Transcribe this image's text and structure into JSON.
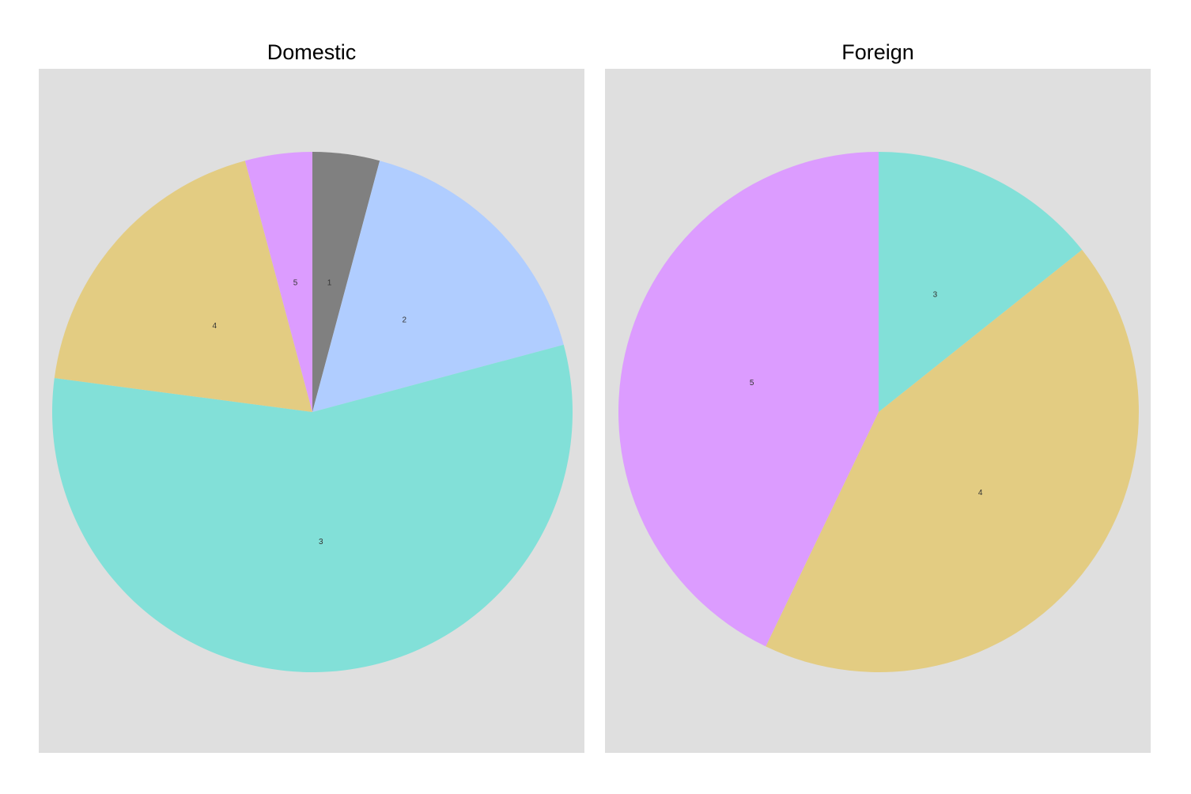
{
  "chart_data": [
    {
      "type": "pie",
      "title": "Domestic",
      "start_angle_deg": 0,
      "direction": "clockwise",
      "grid": false,
      "legend": "none",
      "slices": [
        {
          "label": "1",
          "value": 2,
          "color": "#808080"
        },
        {
          "label": "2",
          "value": 8,
          "color": "#b0cdff"
        },
        {
          "label": "3",
          "value": 27,
          "color": "#82e0d8"
        },
        {
          "label": "4",
          "value": 9,
          "color": "#e3cc82"
        },
        {
          "label": "5",
          "value": 2,
          "color": "#dc9cff"
        }
      ]
    },
    {
      "type": "pie",
      "title": "Foreign",
      "start_angle_deg": 0,
      "direction": "clockwise",
      "grid": false,
      "legend": "none",
      "slices": [
        {
          "label": "3",
          "value": 3,
          "color": "#82e0d8"
        },
        {
          "label": "4",
          "value": 9,
          "color": "#e3cc82"
        },
        {
          "label": "5",
          "value": 9,
          "color": "#dc9cff"
        }
      ]
    }
  ],
  "theme": {
    "panel_background": "#dfdfdf",
    "page_background": "#ffffff"
  }
}
